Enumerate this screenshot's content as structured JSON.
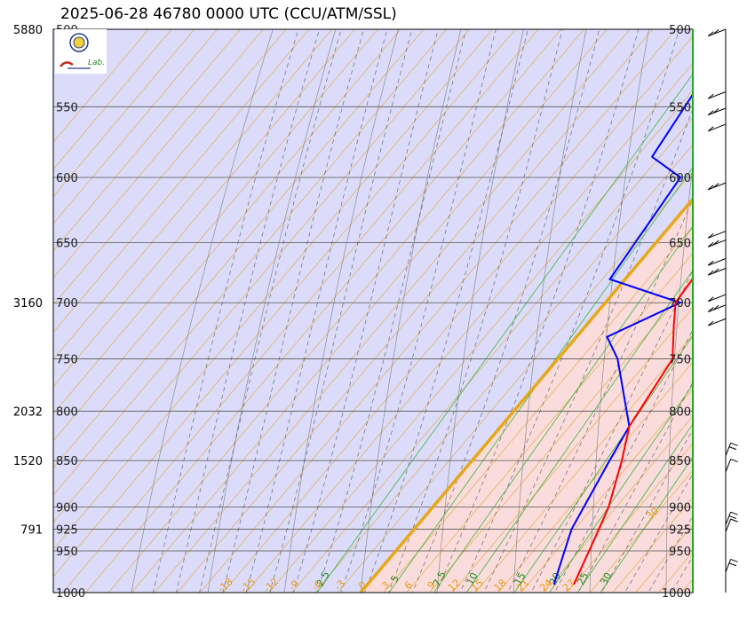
{
  "title": "2025-06-28 46780 0000 UTC (CCU/ATM/SSL)",
  "logo": {
    "text": "Lab."
  },
  "colors": {
    "cold_fill": "#dcdcfa",
    "warm_fill": "#fadcdc",
    "freezing_isotherm": "#e6a817",
    "temperature": "#ff0000",
    "dewpoint": "#0000ff",
    "isobar": "#555555",
    "isotherm": "#e0a840",
    "dry_adiabat": "#777777",
    "moist_adiabat": "#444444",
    "mixing_ratio": "#3cb43c",
    "wind": "#000000"
  },
  "chart_data": {
    "type": "skew-t",
    "title": "2025-06-28 46780 0000 UTC (CCU/ATM/SSL)",
    "pressure_range_hpa": [
      1000,
      500
    ],
    "isobars": [
      1000,
      950,
      925,
      900,
      850,
      800,
      750,
      700,
      650,
      600,
      550,
      500
    ],
    "height_labels": [
      {
        "pressure": 500,
        "height": "5880"
      },
      {
        "pressure": 700,
        "height": "3160"
      },
      {
        "pressure": 800,
        "height": "2032"
      },
      {
        "pressure": 850,
        "height": "1520"
      },
      {
        "pressure": 925,
        "height": "791"
      }
    ],
    "isotherm_labels": [
      "30",
      "27",
      "24",
      "21",
      "18",
      "15",
      "12",
      "9",
      "6",
      "3",
      "0",
      "-3",
      "-6",
      "-9",
      "-12",
      "-15",
      "-18"
    ],
    "isotherm_values": [
      30,
      27,
      24,
      21,
      18,
      15,
      12,
      9,
      6,
      3,
      0,
      -3,
      -6,
      -9,
      -12,
      -15,
      -18
    ],
    "mixing_ratio_labels": [
      "2.5",
      "5",
      "7.5",
      "10",
      "15",
      "20",
      "25",
      "30"
    ],
    "mixing_ratio_values": [
      2.5,
      5,
      7.5,
      10,
      15,
      20,
      25,
      30
    ],
    "temperature": [
      {
        "p": 990,
        "t": 27.0
      },
      {
        "p": 925,
        "t": 24.2
      },
      {
        "p": 900,
        "t": 23.0
      },
      {
        "p": 850,
        "t": 19.6
      },
      {
        "p": 815,
        "t": 16.8
      },
      {
        "p": 750,
        "t": 15.0
      },
      {
        "p": 720,
        "t": 11.5
      },
      {
        "p": 700,
        "t": 9.2
      },
      {
        "p": 680,
        "t": 8.8
      },
      {
        "p": 600,
        "t": 0.6
      },
      {
        "p": 570,
        "t": -2.0
      },
      {
        "p": 530,
        "t": -7.5
      },
      {
        "p": 515,
        "t": -8.4
      },
      {
        "p": 505,
        "t": -9.6
      },
      {
        "p": 500,
        "t": -10.5
      }
    ],
    "dewpoint": [
      {
        "p": 990,
        "t": 24.4
      },
      {
        "p": 925,
        "t": 20.6
      },
      {
        "p": 850,
        "t": 18.0
      },
      {
        "p": 815,
        "t": 16.8
      },
      {
        "p": 750,
        "t": 7.8
      },
      {
        "p": 730,
        "t": 4.0
      },
      {
        "p": 700,
        "t": 9.8
      },
      {
        "p": 680,
        "t": -2.0
      },
      {
        "p": 600,
        "t": -4.0
      },
      {
        "p": 585,
        "t": -10.0
      },
      {
        "p": 530,
        "t": -12.0
      },
      {
        "p": 505,
        "t": -17.2
      },
      {
        "p": 500,
        "t": -16.5
      }
    ],
    "wind_barbs_pressure": [
      500,
      540,
      551,
      562,
      604,
      641,
      648,
      663,
      671,
      693,
      702,
      714,
      845,
      862,
      920,
      928,
      975
    ]
  }
}
